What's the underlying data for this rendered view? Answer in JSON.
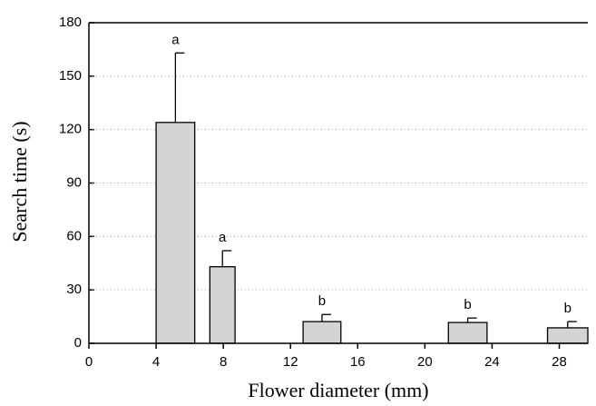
{
  "chart_data": {
    "type": "bar",
    "x_label": "Flower diameter (mm)",
    "y_label": "Search time (s)",
    "x_start": [
      4,
      7.2,
      12.75,
      21.4,
      27.3
    ],
    "x_end": [
      6.3,
      8.7,
      15,
      23.7,
      29.7
    ],
    "values": [
      124,
      43,
      12.2,
      11.7,
      8.7
    ],
    "errors": [
      39,
      9,
      4,
      2.5,
      3.5
    ],
    "annotations": [
      "a",
      "a",
      "b",
      "b",
      "b"
    ],
    "color": "#d4d4d4",
    "xlim": [
      0,
      29.7
    ],
    "xticks": [
      0,
      4,
      8,
      12,
      16,
      20,
      24,
      28
    ],
    "ylim": [
      0,
      180
    ],
    "yticks": [
      0,
      30,
      60,
      90,
      120,
      150,
      180
    ],
    "grid": true
  }
}
